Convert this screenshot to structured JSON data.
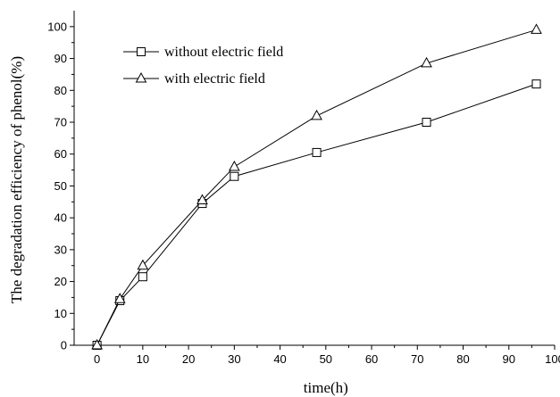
{
  "chart_data": {
    "type": "line",
    "xlabel": "time(h)",
    "ylabel": "The degradation efficiency of phenol(%)",
    "xlim": [
      -5,
      100
    ],
    "ylim": [
      0,
      105
    ],
    "xticks": [
      0,
      10,
      20,
      30,
      40,
      50,
      60,
      70,
      80,
      90,
      100
    ],
    "yticks": [
      0,
      10,
      20,
      30,
      40,
      50,
      60,
      70,
      80,
      90,
      100
    ],
    "legend_position": "top-left",
    "grid": false,
    "series": [
      {
        "name": "without electric field",
        "marker": "square",
        "x": [
          0,
          5,
          10,
          23,
          30,
          48,
          72,
          96
        ],
        "y": [
          0,
          14,
          21.5,
          44.5,
          53,
          60.5,
          70,
          82
        ]
      },
      {
        "name": "with electric field",
        "marker": "triangle",
        "x": [
          0,
          5,
          10,
          23,
          30,
          48,
          72,
          96
        ],
        "y": [
          0,
          14.5,
          25,
          45.5,
          56,
          72,
          88.5,
          99
        ]
      }
    ]
  }
}
